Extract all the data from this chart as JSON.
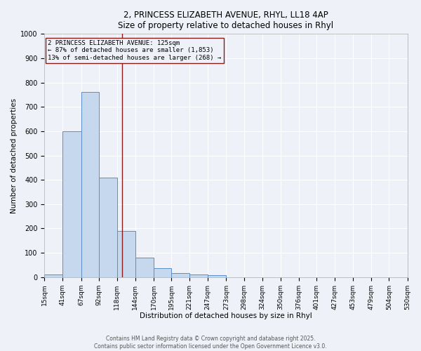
{
  "title_line1": "2, PRINCESS ELIZABETH AVENUE, RHYL, LL18 4AP",
  "title_line2": "Size of property relative to detached houses in Rhyl",
  "xlabel": "Distribution of detached houses by size in Rhyl",
  "ylabel": "Number of detached properties",
  "bar_left_edges": [
    15,
    41,
    67,
    92,
    118,
    144,
    170,
    195,
    221,
    247,
    273,
    298,
    324,
    350,
    376,
    401,
    427,
    453,
    479,
    504
  ],
  "bar_widths": [
    26,
    26,
    25,
    26,
    26,
    26,
    25,
    26,
    26,
    26,
    25,
    26,
    26,
    26,
    25,
    26,
    26,
    26,
    25,
    26
  ],
  "bar_heights": [
    10,
    600,
    760,
    410,
    190,
    80,
    38,
    18,
    10,
    8,
    0,
    0,
    0,
    0,
    0,
    0,
    0,
    0,
    0,
    0
  ],
  "bar_color": "#c5d8ee",
  "bar_edge_color": "#5b8fc9",
  "x_tick_labels": [
    "15sqm",
    "41sqm",
    "67sqm",
    "92sqm",
    "118sqm",
    "144sqm",
    "170sqm",
    "195sqm",
    "221sqm",
    "247sqm",
    "273sqm",
    "298sqm",
    "324sqm",
    "350sqm",
    "376sqm",
    "401sqm",
    "427sqm",
    "453sqm",
    "479sqm",
    "504sqm",
    "530sqm"
  ],
  "x_tick_positions": [
    15,
    41,
    67,
    92,
    118,
    144,
    170,
    195,
    221,
    247,
    273,
    298,
    324,
    350,
    376,
    401,
    427,
    453,
    479,
    504,
    530
  ],
  "ylim": [
    0,
    1000
  ],
  "xlim": [
    15,
    530
  ],
  "red_line_x": 125,
  "annotation_text": "2 PRINCESS ELIZABETH AVENUE: 125sqm\n← 87% of detached houses are smaller (1,853)\n13% of semi-detached houses are larger (268) →",
  "background_color": "#eef2f8",
  "grid_color": "#ffffff",
  "footer_line1": "Contains HM Land Registry data © Crown copyright and database right 2025.",
  "footer_line2": "Contains public sector information licensed under the Open Government Licence v3.0."
}
